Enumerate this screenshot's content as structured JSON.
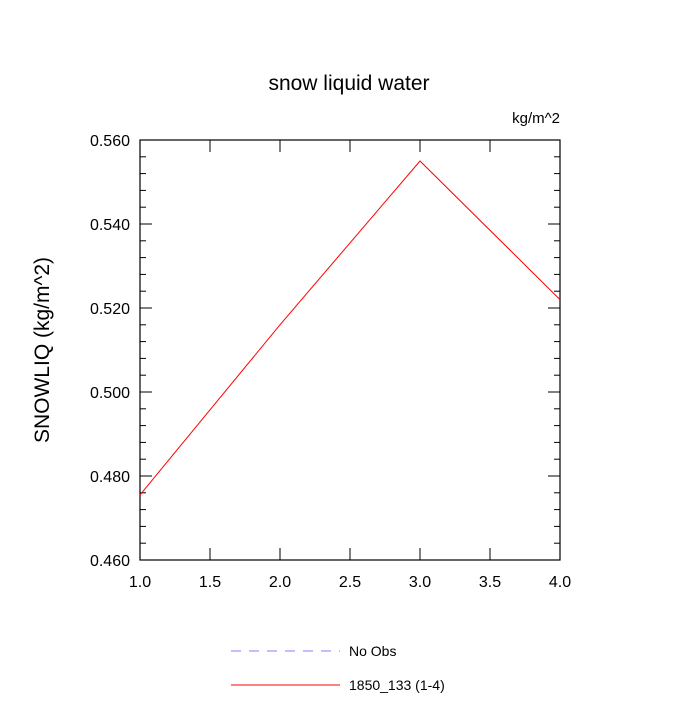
{
  "chart_data": {
    "type": "line",
    "title": "snow liquid water",
    "units": "kg/m^2",
    "ylabel": "SNOWLIQ  (kg/m^2)",
    "xlabel": "",
    "xlim": [
      1.0,
      4.0
    ],
    "ylim": [
      0.46,
      0.56
    ],
    "x_ticks": [
      1.0,
      1.5,
      2.0,
      2.5,
      3.0,
      3.5,
      4.0
    ],
    "x_tick_labels": [
      "1.0",
      "1.5",
      "2.0",
      "2.5",
      "3.0",
      "3.5",
      "4.0"
    ],
    "y_ticks": [
      0.46,
      0.48,
      0.5,
      0.52,
      0.54,
      0.56
    ],
    "y_tick_labels": [
      "0.460",
      "0.480",
      "0.500",
      "0.520",
      "0.540",
      "0.560"
    ],
    "grid": false,
    "legend_position": "bottom",
    "series": [
      {
        "name": "1850_133 (1-4)",
        "color": "#ff0000",
        "dash": "solid",
        "x": [
          1.0,
          2.0,
          3.0,
          4.0
        ],
        "values": [
          0.4755,
          0.516,
          0.555,
          0.522
        ]
      }
    ],
    "legend": [
      {
        "label": "No Obs",
        "color": "#8080ff",
        "dash": "dashed"
      },
      {
        "label": "1850_133 (1-4)",
        "color": "#ff0000",
        "dash": "solid"
      }
    ]
  }
}
